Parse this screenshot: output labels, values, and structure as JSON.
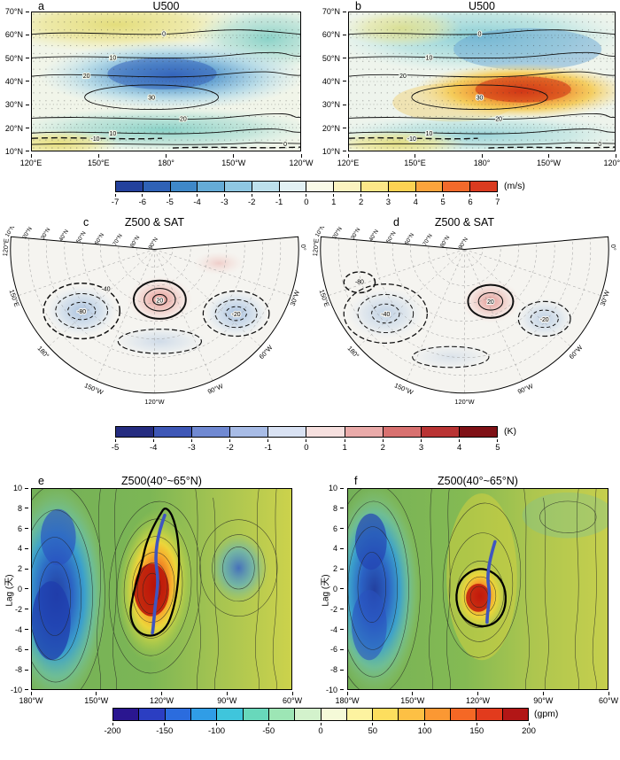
{
  "figure": {
    "panels": {
      "a": {
        "letter": "a",
        "title": "U500",
        "y_ticks": [
          "70°N",
          "60°N",
          "50°N",
          "40°N",
          "30°N",
          "20°N",
          "10°N"
        ],
        "x_ticks": [
          "120°E",
          "150°E",
          "180°",
          "150°W",
          "120°W"
        ],
        "contour_labels": [
          "0",
          "10",
          "20",
          "30",
          "20",
          "10",
          "0",
          "-10"
        ]
      },
      "b": {
        "letter": "b",
        "title": "U500",
        "y_ticks": [
          "70°N",
          "60°N",
          "50°N",
          "40°N",
          "30°N",
          "20°N",
          "10°N"
        ],
        "x_ticks": [
          "120°E",
          "150°E",
          "180°",
          "150°W",
          "120°W"
        ],
        "contour_labels": [
          "0",
          "10",
          "20",
          "30",
          "20",
          "10",
          "0",
          "-10"
        ]
      },
      "c": {
        "letter": "c",
        "title": "Z500 & SAT",
        "lat_labels": [
          "10°N",
          "20°N",
          "30°N",
          "40°N",
          "50°N",
          "60°N",
          "70°N",
          "80°N",
          "90°N"
        ],
        "lon_labels": [
          "120°E",
          "150°E",
          "180°",
          "150°W",
          "120°W",
          "90°W",
          "60°W",
          "30°W",
          "0°"
        ],
        "contour_labels": [
          "-80",
          "-40",
          "20",
          "-20"
        ]
      },
      "d": {
        "letter": "d",
        "title": "Z500 & SAT",
        "lat_labels": [
          "10°N",
          "20°N",
          "30°N",
          "40°N",
          "50°N",
          "60°N",
          "70°N",
          "80°N",
          "90°N"
        ],
        "lon_labels": [
          "120°E",
          "150°E",
          "180°",
          "150°W",
          "120°W",
          "90°W",
          "60°W",
          "30°W",
          "0°"
        ],
        "contour_labels": [
          "-80",
          "-40",
          "20",
          "-20"
        ]
      },
      "e": {
        "letter": "e",
        "title": "Z500(40°~65°N)",
        "ylabel": "Lag (天)",
        "y_ticks": [
          "10",
          "8",
          "6",
          "4",
          "2",
          "0",
          "-2",
          "-4",
          "-6",
          "-8",
          "-10"
        ],
        "x_ticks": [
          "180°W",
          "150°W",
          "120°W",
          "90°W",
          "60°W"
        ]
      },
      "f": {
        "letter": "f",
        "title": "Z500(40°~65°N)",
        "ylabel": "Lag (天)",
        "y_ticks": [
          "10",
          "8",
          "6",
          "4",
          "2",
          "0",
          "-2",
          "-4",
          "-6",
          "-8",
          "-10"
        ],
        "x_ticks": [
          "180°W",
          "150°W",
          "120°W",
          "90°W",
          "60°W"
        ]
      }
    },
    "colorbars": [
      {
        "unit": "(m/s)",
        "ticks": [
          "-7",
          "-6",
          "-5",
          "-4",
          "-3",
          "-2",
          "-1",
          "0",
          "1",
          "2",
          "3",
          "4",
          "5",
          "6",
          "7"
        ],
        "colors": [
          "#24419c",
          "#2f62b6",
          "#3f88c8",
          "#65abd6",
          "#8fc7e2",
          "#bde0ec",
          "#e2f1f4",
          "#f9fae8",
          "#fbf3c0",
          "#fce788",
          "#fdd253",
          "#fba43c",
          "#f26a2b",
          "#da3b20"
        ]
      },
      {
        "unit": "(K)",
        "ticks": [
          "-5",
          "-4",
          "-3",
          "-2",
          "-1",
          "0",
          "1",
          "2",
          "3",
          "4",
          "5"
        ],
        "colors": [
          "#252c80",
          "#3e57b6",
          "#7089d2",
          "#a8bce6",
          "#d9e2f3",
          "#f6e0df",
          "#eaabaa",
          "#d87170",
          "#b93434",
          "#7f1116"
        ]
      },
      {
        "unit": "(gpm)",
        "ticks": [
          "-200",
          "-150",
          "-100",
          "-50",
          "0",
          "50",
          "100",
          "150",
          "200"
        ],
        "colors": [
          "#2a1690",
          "#2b3ec2",
          "#2b6cde",
          "#309de6",
          "#3fc5dc",
          "#68d8bb",
          "#9de6b5",
          "#d3f2cc",
          "#f5fad8",
          "#fdf3a0",
          "#fdde5e",
          "#fdc044",
          "#fb9833",
          "#f56825",
          "#e23b1d",
          "#b21616"
        ]
      }
    ]
  },
  "chart_data": [
    {
      "panel": "a",
      "type": "contour_map",
      "title": "U500",
      "x_range": [
        "120°E",
        "120°W"
      ],
      "y_range": [
        "10°N",
        "70°N"
      ],
      "shading": {
        "variable": "U500 anomaly (shaded)",
        "units": "m/s",
        "levels": [
          -7,
          7
        ],
        "features": [
          {
            "sign": "negative",
            "approx_extreme": -5,
            "location": "30°N–45°N, 170°E–150°W (blue core)"
          },
          {
            "sign": "positive",
            "approx_extreme": 2,
            "location": "55°N–70°N, 130°E–170°W (yellow band)"
          },
          {
            "sign": "positive",
            "approx_extreme": 1,
            "location": "10°N–20°N central Pacific (teal/yellow)"
          }
        ]
      },
      "contours": {
        "variable": "climatological U500",
        "units": "m/s",
        "interval": 10,
        "labeled_values": [
          -10,
          0,
          10,
          20,
          30
        ],
        "jet_max": {
          "value": 30,
          "location": "≈32°N, 160°E–180°"
        },
        "style": "negative dashed, zero and positive solid; dotted latitude rows indicate significance stippling"
      }
    },
    {
      "panel": "b",
      "type": "contour_map",
      "title": "U500",
      "x_range": [
        "120°E",
        "120°W"
      ],
      "y_range": [
        "10°N",
        "70°N"
      ],
      "shading": {
        "variable": "U500 anomaly (shaded)",
        "units": "m/s",
        "levels": [
          -7,
          7
        ],
        "features": [
          {
            "sign": "positive",
            "approx_extreme": 5,
            "location": "28°N–40°N, 180°–140°W (red core)"
          },
          {
            "sign": "negative",
            "approx_extreme": -3,
            "location": "45°N–65°N North Pacific (blue/cyan)"
          },
          {
            "sign": "positive",
            "approx_extreme": 1,
            "location": "10°N–20°N western Pacific (pale yellow)"
          }
        ]
      },
      "contours": {
        "variable": "climatological U500",
        "units": "m/s",
        "interval": 10,
        "labeled_values": [
          -10,
          0,
          10,
          20,
          30
        ],
        "jet_max": {
          "value": 30,
          "location": "≈32°N, 160°E–180°"
        },
        "style": "negative dashed, zero and positive solid"
      }
    },
    {
      "panel": "c",
      "type": "polar_sector_map",
      "title": "Z500 & SAT",
      "sector": "120°E eastward through 180° and the Americas to 0°",
      "lat_range": [
        "10°N",
        "90°N"
      ],
      "shading": {
        "variable": "SAT anomaly",
        "units": "K",
        "levels": [
          -5,
          5
        ],
        "features": [
          {
            "sign": "positive",
            "location": "northwestern North America (red patch)"
          },
          {
            "sign": "negative",
            "location": "central North Pacific (light blue)"
          },
          {
            "sign": "negative",
            "location": "eastern North America / North Atlantic (light blue)"
          }
        ]
      },
      "contours": {
        "variable": "Z500 anomaly",
        "units": "gpm",
        "interval": 20,
        "labeled_values": [
          -80,
          -40,
          -20,
          20
        ],
        "style": "negative dashed, positive solid; deep negative center (−80) over North Pacific, positive center (+20) over NW North America, negative center over Atlantic"
      }
    },
    {
      "panel": "d",
      "type": "polar_sector_map",
      "title": "Z500 & SAT",
      "sector": "120°E eastward through 180° and the Americas to 0°",
      "lat_range": [
        "10°N",
        "90°N"
      ],
      "shading": {
        "variable": "SAT anomaly",
        "units": "K",
        "levels": [
          -5,
          5
        ],
        "features": [
          {
            "sign": "positive",
            "location": "west-central North America (red patch)"
          },
          {
            "sign": "negative",
            "location": "North Pacific (weak light blue)"
          },
          {
            "sign": "negative",
            "location": "eastern North America (weak light blue)"
          }
        ]
      },
      "contours": {
        "variable": "Z500 anomaly",
        "units": "gpm",
        "interval": 20,
        "labeled_values": [
          -80,
          -40,
          -20,
          20
        ],
        "style": "negative dashed, positive solid; weaker pattern than panel c"
      }
    },
    {
      "panel": "e",
      "type": "hovmoller_lag_longitude",
      "title": "Z500(40°~65°N)",
      "x_axis": {
        "label": "longitude",
        "ticks": [
          "180°W",
          "150°W",
          "120°W",
          "90°W",
          "60°W"
        ]
      },
      "y_axis": {
        "label": "Lag (天)",
        "range": [
          -10,
          10
        ],
        "tick_step": 2
      },
      "shading": {
        "variable": "Z500 anomaly",
        "units": "gpm",
        "levels": [
          -200,
          200
        ],
        "features": [
          {
            "sign": "positive",
            "approx_extreme": 200,
            "location": "≈125°W–110°W, lag −3 to +3; warm ridge extends to lag +9"
          },
          {
            "sign": "negative",
            "approx_extreme": -175,
            "location": "≈178°W–155°W, most lags (deep blue)"
          },
          {
            "sign": "negative",
            "approx_extreme": -100,
            "location": "≈80°W–65°W, lag 0 to +4"
          }
        ]
      },
      "annotations": {
        "thick_black_contour": "outlines significant positive center around 120°W",
        "thick_blue_line": "ridge axis from ≈127°W at lag +9 to ≈120°W at lag −3"
      }
    },
    {
      "panel": "f",
      "type": "hovmoller_lag_longitude",
      "title": "Z500(40°~65°N)",
      "x_axis": {
        "label": "longitude",
        "ticks": [
          "180°W",
          "150°W",
          "120°W",
          "90°W",
          "60°W"
        ]
      },
      "y_axis": {
        "label": "Lag (天)",
        "range": [
          -10,
          10
        ],
        "tick_step": 2
      },
      "shading": {
        "variable": "Z500 anomaly",
        "units": "gpm",
        "levels": [
          -200,
          200
        ],
        "features": [
          {
            "sign": "positive",
            "approx_extreme": 150,
            "location": "≈120°W–105°W, lag −2 to +1 (smaller warm center)"
          },
          {
            "sign": "negative",
            "approx_extreme": -175,
            "location": "≈178°W–150°W, most lags (deep blue)"
          },
          {
            "sign": "neutral-positive",
            "location": "yellow-green band east of 100°W"
          }
        ]
      },
      "annotations": {
        "thick_black_contour": "outlines significant positive center near 115°W",
        "thick_blue_line": "ridge axis from ≈110°W at lag +7 to ≈113°W at lag −2"
      }
    }
  ]
}
